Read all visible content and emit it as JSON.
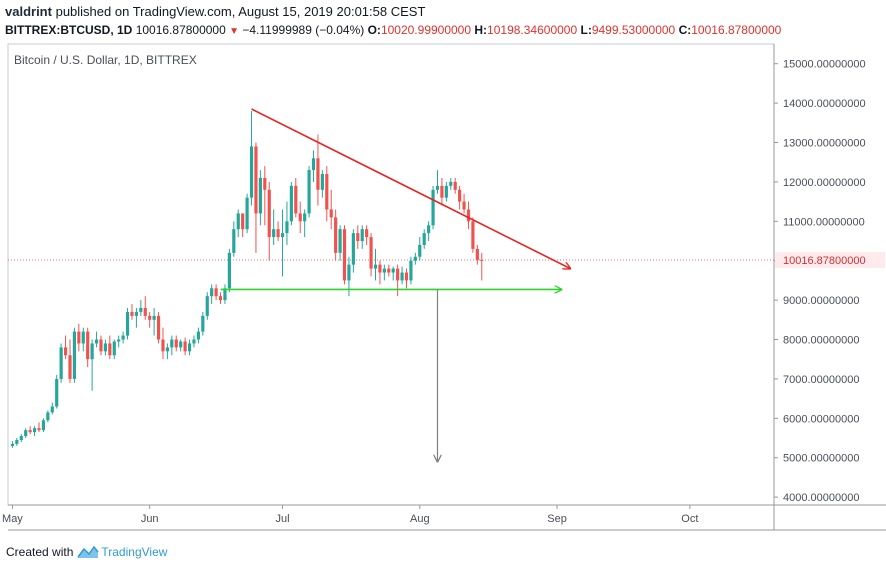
{
  "header": {
    "author": "valdrint",
    "published_text": "published on TradingView.com, August 15, 2019 20:01:58 CEST",
    "symbol_label": "BITTREX:BTCUSD, 1D",
    "last": "10016.87800000",
    "change": "−4.11999989 (−0.04%)",
    "o_label": "O:",
    "o_value": "10020.99900000",
    "h_label": "H:",
    "h_value": "10198.34600000",
    "l_label": "L:",
    "l_value": "9499.53000000",
    "c_label": "C:",
    "c_value": "10016.87800000"
  },
  "footer": {
    "created_with": "Created with",
    "brand": "TradingView"
  },
  "chart_data": {
    "type": "candlestick",
    "title": "Bitcoin / U.S. Dollar, 1D, BITTREX",
    "ylim": [
      3800,
      15500
    ],
    "y_ticks": [
      "15000.00000000",
      "14000.00000000",
      "13000.00000000",
      "12000.00000000",
      "11000.00000000",
      "10000.00000000",
      "9000.00000000",
      "8000.00000000",
      "7000.00000000",
      "6000.00000000",
      "5000.00000000",
      "4000.00000000"
    ],
    "y_tick_values": [
      15000,
      14000,
      13000,
      12000,
      11000,
      10000,
      9000,
      8000,
      7000,
      6000,
      5000,
      4000
    ],
    "x_ticks": [
      {
        "label": "May",
        "day": 0
      },
      {
        "label": "Jun",
        "day": 31
      },
      {
        "label": "Jul",
        "day": 61
      },
      {
        "label": "Aug",
        "day": 92
      },
      {
        "label": "Sep",
        "day": 123
      },
      {
        "label": "Oct",
        "day": 153
      }
    ],
    "x_range_days": [
      -1,
      172
    ],
    "current_price": 10016.878,
    "current_price_label": "10016.87800000",
    "colors": {
      "up": "#26a69a",
      "down": "#ef5350",
      "resistance": "#e8221f",
      "support": "#29d42b",
      "target": "#808080",
      "price_line": "#e57373"
    },
    "candles": [
      {
        "d": 0,
        "o": 5300,
        "h": 5420,
        "l": 5250,
        "c": 5350
      },
      {
        "d": 1,
        "o": 5350,
        "h": 5500,
        "l": 5300,
        "c": 5450
      },
      {
        "d": 2,
        "o": 5450,
        "h": 5600,
        "l": 5400,
        "c": 5550
      },
      {
        "d": 3,
        "o": 5550,
        "h": 5750,
        "l": 5500,
        "c": 5700
      },
      {
        "d": 4,
        "o": 5700,
        "h": 5800,
        "l": 5600,
        "c": 5650
      },
      {
        "d": 5,
        "o": 5650,
        "h": 5800,
        "l": 5550,
        "c": 5750
      },
      {
        "d": 6,
        "o": 5750,
        "h": 5900,
        "l": 5650,
        "c": 5700
      },
      {
        "d": 7,
        "o": 5700,
        "h": 6000,
        "l": 5650,
        "c": 5950
      },
      {
        "d": 8,
        "o": 5950,
        "h": 6200,
        "l": 5900,
        "c": 6150
      },
      {
        "d": 9,
        "o": 6150,
        "h": 6400,
        "l": 6100,
        "c": 6300
      },
      {
        "d": 10,
        "o": 6300,
        "h": 7100,
        "l": 6250,
        "c": 7000
      },
      {
        "d": 11,
        "o": 7000,
        "h": 7900,
        "l": 6900,
        "c": 7800
      },
      {
        "d": 12,
        "o": 7800,
        "h": 8100,
        "l": 7500,
        "c": 7600
      },
      {
        "d": 13,
        "o": 7600,
        "h": 8000,
        "l": 6900,
        "c": 7000
      },
      {
        "d": 14,
        "o": 7000,
        "h": 8300,
        "l": 6900,
        "c": 8200
      },
      {
        "d": 15,
        "o": 8200,
        "h": 8400,
        "l": 7700,
        "c": 7900
      },
      {
        "d": 16,
        "o": 7900,
        "h": 8300,
        "l": 7700,
        "c": 8200
      },
      {
        "d": 17,
        "o": 8200,
        "h": 8300,
        "l": 7300,
        "c": 7500
      },
      {
        "d": 18,
        "o": 7500,
        "h": 8000,
        "l": 6700,
        "c": 7900
      },
      {
        "d": 19,
        "o": 7900,
        "h": 8200,
        "l": 7800,
        "c": 8000
      },
      {
        "d": 20,
        "o": 8000,
        "h": 8100,
        "l": 7600,
        "c": 7700
      },
      {
        "d": 21,
        "o": 7700,
        "h": 8000,
        "l": 7600,
        "c": 7900
      },
      {
        "d": 22,
        "o": 7900,
        "h": 8100,
        "l": 7500,
        "c": 7600
      },
      {
        "d": 23,
        "o": 7600,
        "h": 8000,
        "l": 7500,
        "c": 7950
      },
      {
        "d": 24,
        "o": 7950,
        "h": 8100,
        "l": 7800,
        "c": 8000
      },
      {
        "d": 25,
        "o": 8000,
        "h": 8200,
        "l": 7900,
        "c": 8100
      },
      {
        "d": 26,
        "o": 8100,
        "h": 8800,
        "l": 8000,
        "c": 8700
      },
      {
        "d": 27,
        "o": 8700,
        "h": 8900,
        "l": 8500,
        "c": 8600
      },
      {
        "d": 28,
        "o": 8600,
        "h": 8800,
        "l": 8300,
        "c": 8700
      },
      {
        "d": 29,
        "o": 8700,
        "h": 9000,
        "l": 8600,
        "c": 8800
      },
      {
        "d": 30,
        "o": 8800,
        "h": 9100,
        "l": 8500,
        "c": 8600
      },
      {
        "d": 31,
        "o": 8600,
        "h": 8700,
        "l": 8300,
        "c": 8500
      },
      {
        "d": 32,
        "o": 8500,
        "h": 8800,
        "l": 8100,
        "c": 8600
      },
      {
        "d": 33,
        "o": 8600,
        "h": 8700,
        "l": 7900,
        "c": 8000
      },
      {
        "d": 34,
        "o": 8000,
        "h": 8300,
        "l": 7500,
        "c": 7700
      },
      {
        "d": 35,
        "o": 7700,
        "h": 7900,
        "l": 7500,
        "c": 7800
      },
      {
        "d": 36,
        "o": 7800,
        "h": 8100,
        "l": 7600,
        "c": 8000
      },
      {
        "d": 37,
        "o": 8000,
        "h": 8100,
        "l": 7700,
        "c": 7800
      },
      {
        "d": 38,
        "o": 7800,
        "h": 8000,
        "l": 7700,
        "c": 7950
      },
      {
        "d": 39,
        "o": 7950,
        "h": 8050,
        "l": 7600,
        "c": 7700
      },
      {
        "d": 40,
        "o": 7700,
        "h": 8000,
        "l": 7600,
        "c": 7900
      },
      {
        "d": 41,
        "o": 7900,
        "h": 8100,
        "l": 7800,
        "c": 8000
      },
      {
        "d": 42,
        "o": 8000,
        "h": 8300,
        "l": 7900,
        "c": 8200
      },
      {
        "d": 43,
        "o": 8200,
        "h": 8700,
        "l": 8100,
        "c": 8600
      },
      {
        "d": 44,
        "o": 8600,
        "h": 9200,
        "l": 8500,
        "c": 9100
      },
      {
        "d": 45,
        "o": 9100,
        "h": 9400,
        "l": 8900,
        "c": 9300
      },
      {
        "d": 46,
        "o": 9300,
        "h": 9400,
        "l": 9000,
        "c": 9100
      },
      {
        "d": 47,
        "o": 9100,
        "h": 9200,
        "l": 8900,
        "c": 9000
      },
      {
        "d": 48,
        "o": 9000,
        "h": 9400,
        "l": 8900,
        "c": 9300
      },
      {
        "d": 49,
        "o": 9300,
        "h": 10300,
        "l": 9200,
        "c": 10200
      },
      {
        "d": 50,
        "o": 10200,
        "h": 11000,
        "l": 10100,
        "c": 10800
      },
      {
        "d": 51,
        "o": 10800,
        "h": 11300,
        "l": 10600,
        "c": 11200
      },
      {
        "d": 52,
        "o": 11200,
        "h": 11200,
        "l": 10600,
        "c": 10800
      },
      {
        "d": 53,
        "o": 10800,
        "h": 11700,
        "l": 10700,
        "c": 11600
      },
      {
        "d": 54,
        "o": 11600,
        "h": 13800,
        "l": 11400,
        "c": 12900
      },
      {
        "d": 55,
        "o": 12900,
        "h": 13000,
        "l": 10200,
        "c": 11200
      },
      {
        "d": 56,
        "o": 11200,
        "h": 12300,
        "l": 10900,
        "c": 12100
      },
      {
        "d": 57,
        "o": 12100,
        "h": 12400,
        "l": 10900,
        "c": 11800
      },
      {
        "d": 58,
        "o": 11800,
        "h": 12000,
        "l": 10000,
        "c": 10600
      },
      {
        "d": 59,
        "o": 10600,
        "h": 11300,
        "l": 10400,
        "c": 10800
      },
      {
        "d": 60,
        "o": 10800,
        "h": 11000,
        "l": 10500,
        "c": 10600
      },
      {
        "d": 61,
        "o": 10600,
        "h": 11300,
        "l": 9600,
        "c": 10700
      },
      {
        "d": 62,
        "o": 10700,
        "h": 11500,
        "l": 10400,
        "c": 11000
      },
      {
        "d": 63,
        "o": 11000,
        "h": 12000,
        "l": 10900,
        "c": 11900
      },
      {
        "d": 64,
        "o": 11900,
        "h": 12100,
        "l": 11100,
        "c": 11200
      },
      {
        "d": 65,
        "o": 11200,
        "h": 11500,
        "l": 10700,
        "c": 11000
      },
      {
        "d": 66,
        "o": 11000,
        "h": 11300,
        "l": 10600,
        "c": 11200
      },
      {
        "d": 67,
        "o": 11200,
        "h": 12400,
        "l": 11100,
        "c": 12300
      },
      {
        "d": 68,
        "o": 12300,
        "h": 12800,
        "l": 12000,
        "c": 12600
      },
      {
        "d": 69,
        "o": 12600,
        "h": 13200,
        "l": 11400,
        "c": 11800
      },
      {
        "d": 70,
        "o": 11800,
        "h": 12300,
        "l": 11600,
        "c": 12200
      },
      {
        "d": 71,
        "o": 12200,
        "h": 12400,
        "l": 11000,
        "c": 11300
      },
      {
        "d": 72,
        "o": 11300,
        "h": 11800,
        "l": 10800,
        "c": 11100
      },
      {
        "d": 73,
        "o": 11100,
        "h": 11300,
        "l": 10000,
        "c": 10200
      },
      {
        "d": 74,
        "o": 10200,
        "h": 10900,
        "l": 10000,
        "c": 10800
      },
      {
        "d": 75,
        "o": 10800,
        "h": 10900,
        "l": 9400,
        "c": 9500
      },
      {
        "d": 76,
        "o": 9500,
        "h": 10100,
        "l": 9100,
        "c": 9900
      },
      {
        "d": 77,
        "o": 9900,
        "h": 10800,
        "l": 9700,
        "c": 10700
      },
      {
        "d": 78,
        "o": 10700,
        "h": 10900,
        "l": 10300,
        "c": 10500
      },
      {
        "d": 79,
        "o": 10500,
        "h": 10900,
        "l": 10300,
        "c": 10800
      },
      {
        "d": 80,
        "o": 10800,
        "h": 10900,
        "l": 10400,
        "c": 10600
      },
      {
        "d": 81,
        "o": 10600,
        "h": 10700,
        "l": 9600,
        "c": 9800
      },
      {
        "d": 82,
        "o": 9800,
        "h": 10300,
        "l": 9500,
        "c": 9900
      },
      {
        "d": 83,
        "o": 9900,
        "h": 10000,
        "l": 9400,
        "c": 9700
      },
      {
        "d": 84,
        "o": 9700,
        "h": 9900,
        "l": 9500,
        "c": 9800
      },
      {
        "d": 85,
        "o": 9800,
        "h": 9900,
        "l": 9600,
        "c": 9700
      },
      {
        "d": 86,
        "o": 9700,
        "h": 9850,
        "l": 9500,
        "c": 9800
      },
      {
        "d": 87,
        "o": 9800,
        "h": 9900,
        "l": 9100,
        "c": 9500
      },
      {
        "d": 88,
        "o": 9500,
        "h": 9850,
        "l": 9400,
        "c": 9700
      },
      {
        "d": 89,
        "o": 9700,
        "h": 9800,
        "l": 9300,
        "c": 9500
      },
      {
        "d": 90,
        "o": 9500,
        "h": 10100,
        "l": 9400,
        "c": 10000
      },
      {
        "d": 91,
        "o": 10000,
        "h": 10200,
        "l": 9900,
        "c": 10100
      },
      {
        "d": 92,
        "o": 10100,
        "h": 10600,
        "l": 10000,
        "c": 10400
      },
      {
        "d": 93,
        "o": 10400,
        "h": 10800,
        "l": 10300,
        "c": 10700
      },
      {
        "d": 94,
        "o": 10700,
        "h": 11000,
        "l": 10500,
        "c": 10900
      },
      {
        "d": 95,
        "o": 10900,
        "h": 11900,
        "l": 10800,
        "c": 11800
      },
      {
        "d": 96,
        "o": 11800,
        "h": 12300,
        "l": 11700,
        "c": 11900
      },
      {
        "d": 97,
        "o": 11900,
        "h": 12100,
        "l": 11400,
        "c": 11600
      },
      {
        "d": 98,
        "o": 11600,
        "h": 12000,
        "l": 11500,
        "c": 11900
      },
      {
        "d": 99,
        "o": 11900,
        "h": 12100,
        "l": 11800,
        "c": 12000
      },
      {
        "d": 100,
        "o": 12000,
        "h": 12100,
        "l": 11700,
        "c": 11800
      },
      {
        "d": 101,
        "o": 11800,
        "h": 11900,
        "l": 11300,
        "c": 11500
      },
      {
        "d": 102,
        "o": 11500,
        "h": 11700,
        "l": 11200,
        "c": 11300
      },
      {
        "d": 103,
        "o": 11300,
        "h": 11500,
        "l": 10800,
        "c": 11000
      },
      {
        "d": 104,
        "o": 11000,
        "h": 11100,
        "l": 10200,
        "c": 10300
      },
      {
        "d": 105,
        "o": 10300,
        "h": 10400,
        "l": 9900,
        "c": 10020
      },
      {
        "d": 106,
        "o": 10020.999,
        "h": 10198.346,
        "l": 9499.53,
        "c": 10016.878
      }
    ],
    "annotations": [
      {
        "type": "trendline",
        "name": "descending-resistance-line",
        "color": "resistance",
        "from": {
          "day": 54,
          "price": 13850
        },
        "to": {
          "day": 126,
          "price": 9800
        },
        "arrow": true
      },
      {
        "type": "trendline",
        "name": "horizontal-support-line",
        "color": "support",
        "from": {
          "day": 47,
          "price": 9270
        },
        "to": {
          "day": 124,
          "price": 9270
        },
        "arrow": true
      },
      {
        "type": "trendline",
        "name": "target-projection-line",
        "color": "target",
        "from": {
          "day": 96,
          "price": 9270
        },
        "to": {
          "day": 96,
          "price": 4900
        },
        "arrow": true
      }
    ]
  }
}
